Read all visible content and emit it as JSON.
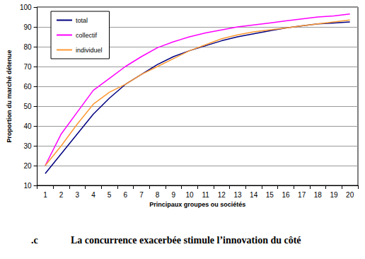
{
  "chart_data": {
    "type": "line",
    "x_label": "Principaux groupes ou sociétés",
    "y_label": "Proportion du marché détenue",
    "categories": [
      1,
      2,
      3,
      4,
      5,
      6,
      7,
      8,
      9,
      10,
      11,
      12,
      13,
      14,
      15,
      16,
      17,
      18,
      19,
      20
    ],
    "series": [
      {
        "name": "total",
        "color": "#000080",
        "values": [
          16,
          26,
          36,
          46,
          54,
          61,
          66,
          71,
          75,
          78,
          80.5,
          83,
          85,
          86.5,
          88,
          89.5,
          90.5,
          91.5,
          92,
          92.5
        ]
      },
      {
        "name": "collectif",
        "color": "#ff00ff",
        "values": [
          20,
          36,
          47,
          58,
          64,
          70,
          75,
          79.5,
          82.5,
          85,
          87,
          88.5,
          90,
          91,
          92,
          93,
          94,
          95,
          95.5,
          96.5
        ]
      },
      {
        "name": "individuel",
        "color": "#ff9933",
        "values": [
          20,
          30,
          41,
          51,
          57,
          61,
          66,
          70,
          74,
          78,
          81,
          84,
          86,
          87.5,
          88.5,
          89.5,
          90.5,
          91.5,
          92.5,
          93.5
        ]
      }
    ],
    "ylim": [
      10,
      100
    ],
    "yticks": [
      10,
      20,
      30,
      40,
      50,
      60,
      70,
      80,
      90,
      100
    ],
    "grid": true,
    "legend": "upper left",
    "marker": "none",
    "line_style": "solid",
    "annotations": [
      ".c",
      "La concurrence exacerbée stimule l’innovation du côté"
    ]
  }
}
